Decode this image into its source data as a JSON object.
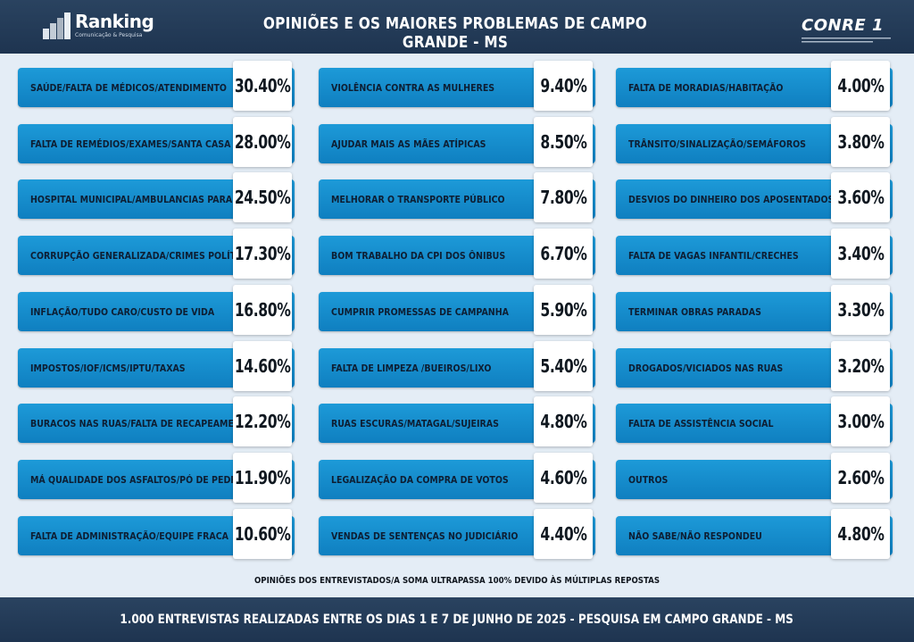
{
  "header": {
    "title": "OPINIÕES E OS MAIORES PROBLEMAS DE CAMPO GRANDE - MS",
    "logo_left_name": "Ranking",
    "logo_left_tagline": "Comunicação & Pesquisa",
    "logo_right_name": "CONRE 1"
  },
  "chart_data": {
    "type": "bar",
    "title": "OPINIÕES E OS MAIORES PROBLEMAS DE CAMPO GRANDE - MS",
    "columns": [
      [
        {
          "label": "SAÚDE/FALTA DE MÉDICOS/ATENDIMENTO",
          "value": "30.40%"
        },
        {
          "label": "FALTA DE REMÉDIOS/EXAMES/SANTA CASA",
          "value": "28.00%"
        },
        {
          "label": "HOSPITAL MUNICIPAL/AMBULANCIAS PARADAS",
          "value": "24.50%"
        },
        {
          "label": "CORRUPÇÃO GENERALIZADA/CRIMES POLÍTICOS",
          "value": "17.30%"
        },
        {
          "label": "INFLAÇÃO/TUDO CARO/CUSTO DE VIDA",
          "value": "16.80%"
        },
        {
          "label": "IMPOSTOS/IOF/ICMS/IPTU/TAXAS",
          "value": "14.60%"
        },
        {
          "label": "BURACOS NAS RUAS/FALTA DE RECAPEAMENTO",
          "value": "12.20%"
        },
        {
          "label": "MÁ QUALIDADE DOS ASFALTOS/PÓ DE PEDRA",
          "value": "11.90%"
        },
        {
          "label": "FALTA DE ADMINISTRAÇÃO/EQUIPE FRACA",
          "value": "10.60%"
        }
      ],
      [
        {
          "label": "VIOLÊNCIA CONTRA AS MULHERES",
          "value": "9.40%"
        },
        {
          "label": "AJUDAR MAIS AS MÃES ATÍPICAS",
          "value": "8.50%"
        },
        {
          "label": "MELHORAR O TRANSPORTE PÚBLICO",
          "value": "7.80%"
        },
        {
          "label": "BOM TRABALHO DA CPI DOS ÔNIBUS",
          "value": "6.70%"
        },
        {
          "label": "CUMPRIR PROMESSAS DE CAMPANHA",
          "value": "5.90%"
        },
        {
          "label": "FALTA DE LIMPEZA /BUEIROS/LIXO",
          "value": "5.40%"
        },
        {
          "label": "RUAS ESCURAS/MATAGAL/SUJEIRAS",
          "value": "4.80%"
        },
        {
          "label": "LEGALIZAÇÃO DA COMPRA DE VOTOS",
          "value": "4.60%"
        },
        {
          "label": "VENDAS DE SENTENÇAS NO JUDICIÁRIO",
          "value": "4.40%"
        }
      ],
      [
        {
          "label": "FALTA DE MORADIAS/HABITAÇÃO",
          "value": "4.00%"
        },
        {
          "label": "TRÂNSITO/SINALIZAÇÃO/SEMÁFOROS",
          "value": "3.80%"
        },
        {
          "label": "DESVIOS DO DINHEIRO DOS APOSENTADOS",
          "value": "3.60%"
        },
        {
          "label": "FALTA DE VAGAS INFANTIL/CRECHES",
          "value": "3.40%"
        },
        {
          "label": "TERMINAR OBRAS PARADAS",
          "value": "3.30%"
        },
        {
          "label": "DROGADOS/VICIADOS NAS RUAS",
          "value": "3.20%"
        },
        {
          "label": "FALTA DE ASSISTÊNCIA SOCIAL",
          "value": "3.00%"
        },
        {
          "label": "OUTROS",
          "value": "2.60%"
        },
        {
          "label": "NÃO SABE/NÃO RESPONDEU",
          "value": "4.80%"
        }
      ]
    ]
  },
  "note": "OPINIÕES DOS ENTREVISTADOS/A SOMA ULTRAPASSA 100% DEVIDO ÀS MÚLTIPLAS REPOSTAS",
  "footer": "1.000 ENTREVISTAS REALIZADAS ENTRE OS DIAS 1 E 7 DE JUNHO DE 2025  - PESQUISA EM CAMPO GRANDE - MS",
  "colors": {
    "header_bg": "#1e3450",
    "bar_blue": "#1590d0",
    "page_bg": "#e4edf6",
    "value_box": "#ffffff"
  }
}
